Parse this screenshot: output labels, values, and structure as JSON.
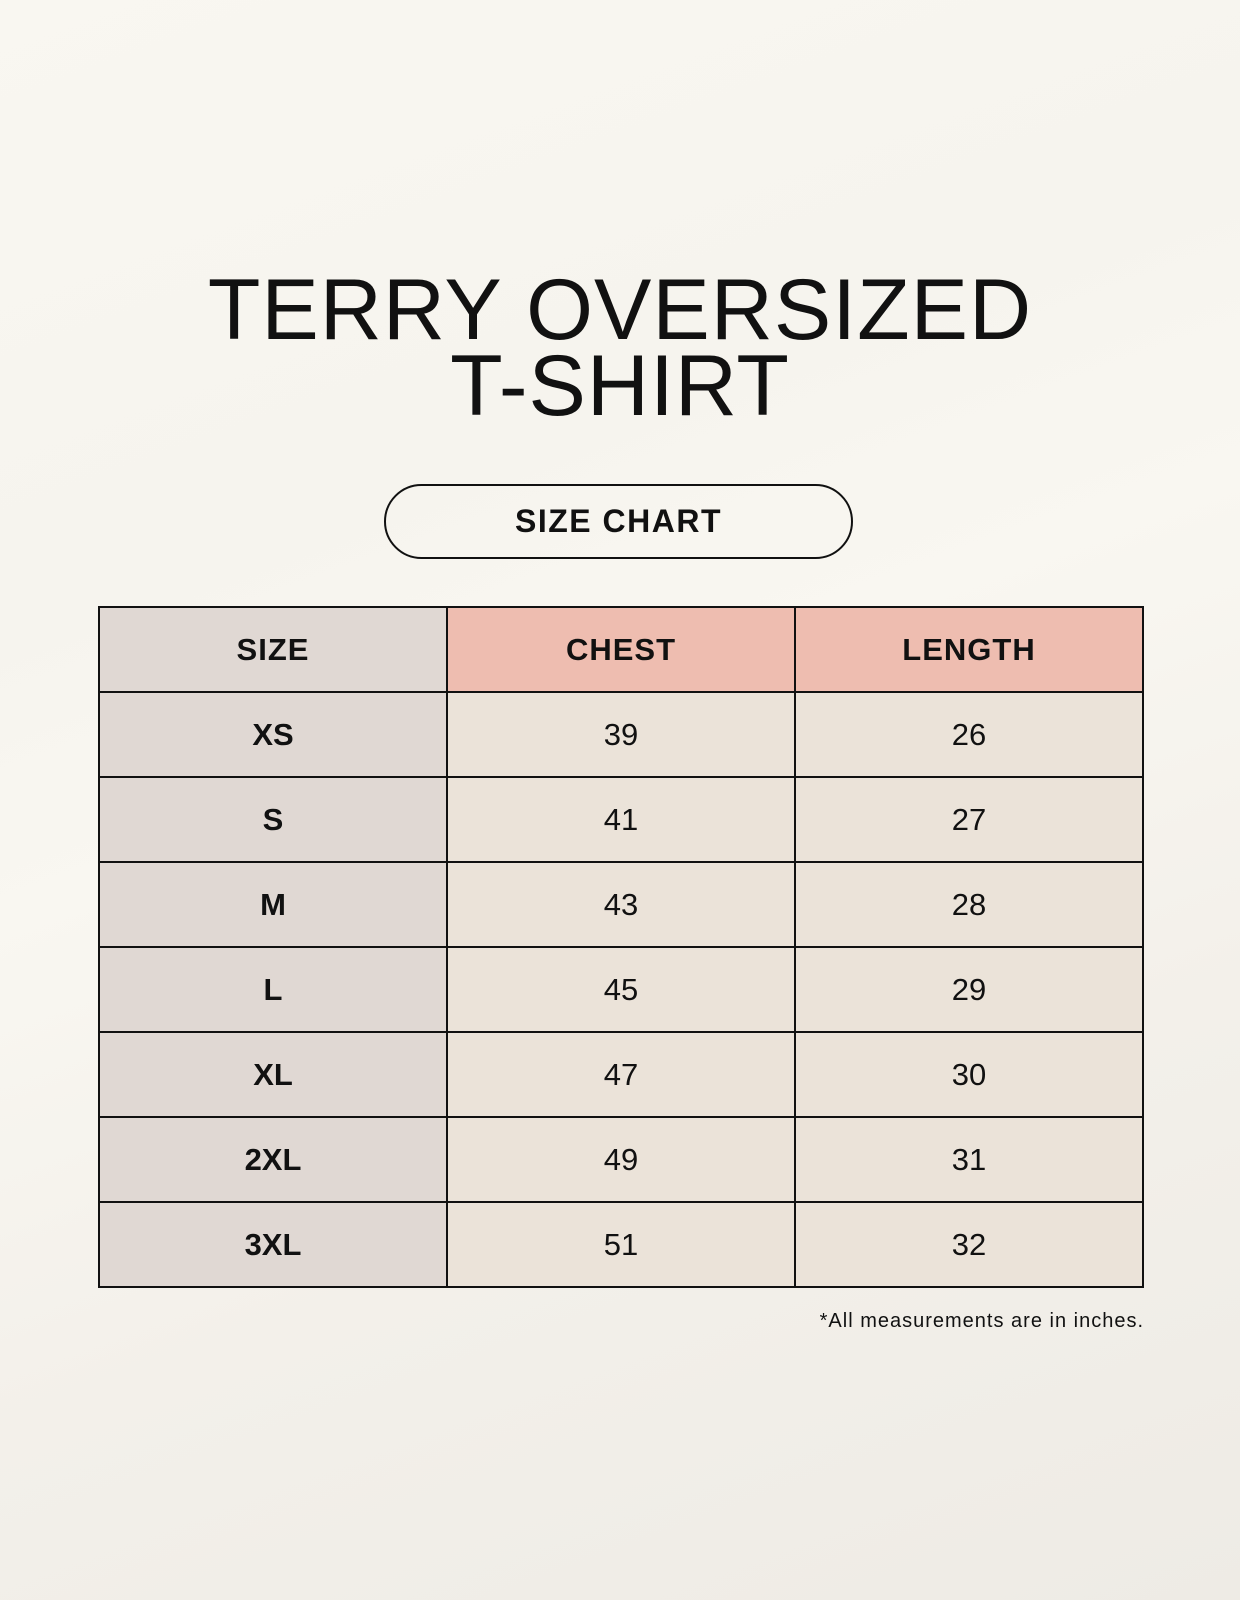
{
  "title_line1": "TERRY OVERSIZED",
  "title_line2": "T-SHIRT",
  "subtitle": "SIZE CHART",
  "table": {
    "headers": [
      "SIZE",
      "CHEST",
      "LENGTH"
    ],
    "rows": [
      [
        "XS",
        "39",
        "26"
      ],
      [
        "S",
        "41",
        "27"
      ],
      [
        "M",
        "43",
        "28"
      ],
      [
        "L",
        "45",
        "29"
      ],
      [
        "XL",
        "47",
        "30"
      ],
      [
        "2XL",
        "49",
        "31"
      ],
      [
        "3XL",
        "51",
        "32"
      ]
    ]
  },
  "footnote": "*All measurements are in inches.",
  "colors": {
    "size_column": "#e0d8d3",
    "header_accent": "#eebdb0",
    "cell": "#ebe3d9"
  }
}
